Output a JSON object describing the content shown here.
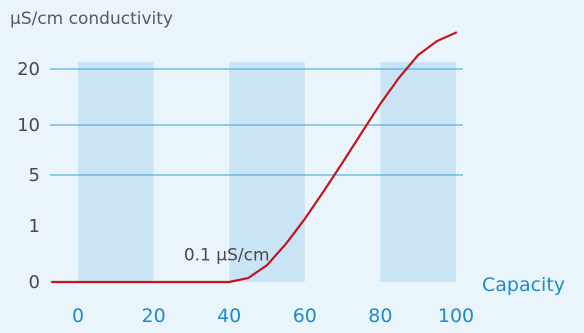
{
  "chart_data": {
    "type": "line",
    "ylabel": "µS/cm conductivity",
    "xlabel": "Capacity",
    "x_ticks": [
      "0",
      "20",
      "40",
      "60",
      "80",
      "100"
    ],
    "y_ticks": [
      "0",
      "1",
      "5",
      "10",
      "20"
    ],
    "xlim": [
      0,
      100
    ],
    "shaded_bands": [
      [
        0,
        20
      ],
      [
        40,
        60
      ],
      [
        80,
        100
      ]
    ],
    "series": [
      {
        "x": [
          0,
          10,
          20,
          30,
          40,
          45,
          50,
          55,
          60,
          65,
          70,
          75,
          80,
          85,
          90,
          95,
          100
        ],
        "y_position": [
          0,
          0,
          0,
          0,
          0,
          0.07,
          0.3,
          0.68,
          1.14,
          1.68,
          2.25,
          2.84,
          3.38,
          3.85,
          4.25,
          4.5,
          4.65
        ],
        "color": "#c4161c"
      }
    ],
    "annotations": [
      {
        "text": "0.1 µS/cm",
        "x": 28,
        "y_position": 0.38
      }
    ],
    "colors": {
      "band": "#c9e5f5",
      "grid": "#5bb0de",
      "accent": "#1f8cc8"
    }
  }
}
